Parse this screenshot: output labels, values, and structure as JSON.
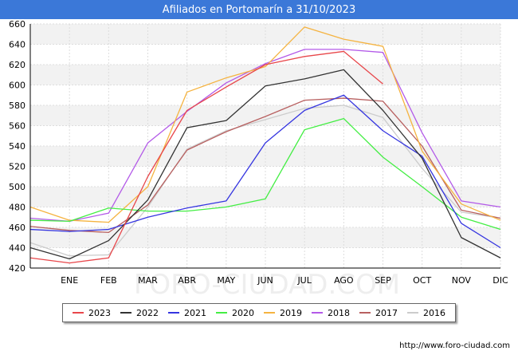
{
  "header": {
    "title": "Afiliados en Portomarín a 31/10/2023"
  },
  "footer": {
    "url": "http://www.foro-ciudad.com"
  },
  "watermark": {
    "text": "FORO-CIUDAD.COM"
  },
  "chart_data": {
    "type": "line",
    "title": "Afiliados en Portomarín a 31/10/2023",
    "xlabel": "",
    "ylabel": "",
    "categories": [
      "",
      "ENE",
      "FEB",
      "MAR",
      "ABR",
      "MAY",
      "JUN",
      "JUL",
      "AGO",
      "SEP",
      "OCT",
      "NOV",
      "DIC"
    ],
    "ylim": [
      420,
      660
    ],
    "yticks": [
      420,
      440,
      460,
      480,
      500,
      520,
      540,
      560,
      580,
      600,
      620,
      640,
      660
    ],
    "grid": true,
    "legend_position": "bottom",
    "series": [
      {
        "name": "2023",
        "color": "#e8474b",
        "values": [
          430,
          425,
          430,
          510,
          575,
          598,
          620,
          628,
          633,
          601,
          null,
          null,
          null
        ]
      },
      {
        "name": "2022",
        "color": "#333333",
        "values": [
          440,
          429,
          447,
          487,
          558,
          565,
          599,
          606,
          615,
          575,
          528,
          450,
          430
        ]
      },
      {
        "name": "2021",
        "color": "#3535e0",
        "values": [
          458,
          456,
          458,
          470,
          479,
          486,
          543,
          575,
          590,
          555,
          530,
          464,
          440
        ]
      },
      {
        "name": "2020",
        "color": "#44ee44",
        "values": [
          467,
          466,
          479,
          476,
          476,
          480,
          488,
          556,
          567,
          529,
          500,
          470,
          458
        ]
      },
      {
        "name": "2019",
        "color": "#f5b340",
        "values": [
          480,
          467,
          465,
          500,
          593,
          607,
          618,
          657,
          645,
          638,
          535,
          483,
          467
        ]
      },
      {
        "name": "2018",
        "color": "#b35ae8",
        "values": [
          469,
          466,
          474,
          543,
          574,
          602,
          621,
          635,
          635,
          632,
          553,
          486,
          480
        ]
      },
      {
        "name": "2017",
        "color": "#b86060",
        "values": [
          461,
          457,
          455,
          482,
          536,
          554,
          569,
          585,
          587,
          584,
          540,
          477,
          469
        ]
      },
      {
        "name": "2016",
        "color": "#cccccc",
        "values": [
          445,
          432,
          433,
          480,
          537,
          555,
          566,
          577,
          580,
          568,
          518,
          475,
          469
        ]
      }
    ]
  }
}
